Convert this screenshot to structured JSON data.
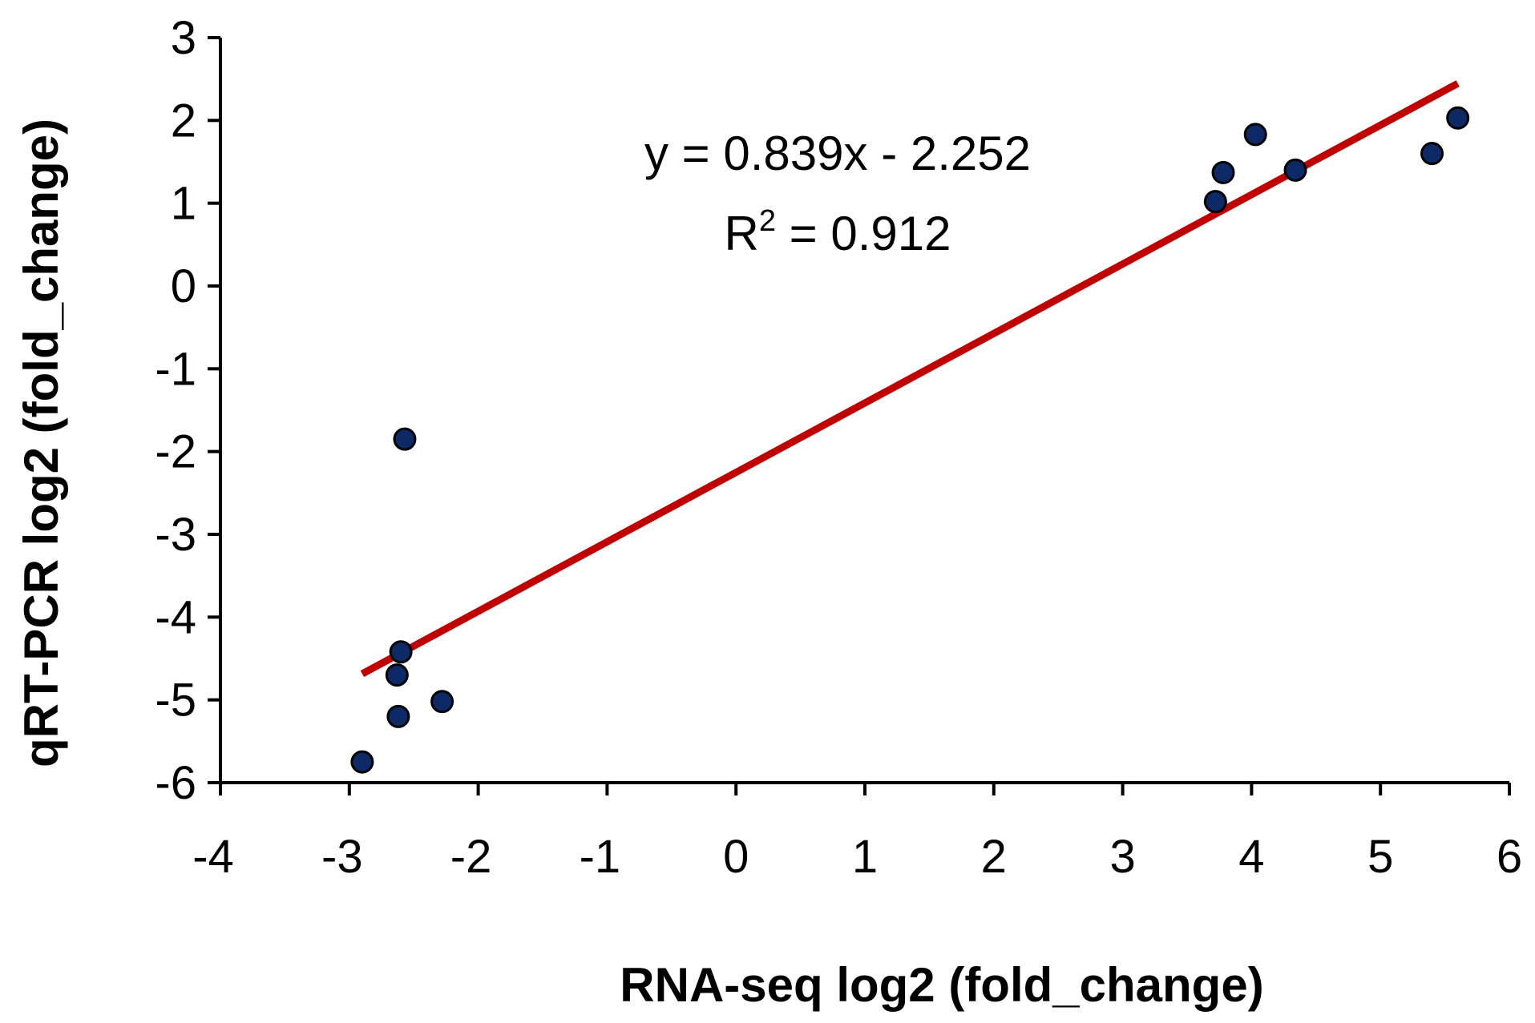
{
  "chart_data": {
    "type": "scatter",
    "xlabel": "RNA-seq log2 (fold_change)",
    "ylabel": "qRT-PCR log2 (fold_change)",
    "xlim": [
      -4,
      6
    ],
    "ylim": [
      -6,
      3
    ],
    "xticks": [
      "-4",
      "-3",
      "-2",
      "-1",
      "0",
      "1",
      "2",
      "3",
      "4",
      "5",
      "6"
    ],
    "yticks": [
      "3",
      "2",
      "1",
      "0",
      "-1",
      "-2",
      "-3",
      "-4",
      "-5",
      "-6"
    ],
    "grid": false,
    "legend": "none",
    "series": [
      {
        "x": [
          -2.57,
          -2.6,
          -2.63,
          -2.62,
          -2.28,
          -2.9,
          3.72,
          3.78,
          4.03,
          4.34,
          5.4,
          5.6
        ],
        "y": [
          -1.85,
          -4.42,
          -4.7,
          -5.2,
          -5.02,
          -5.75,
          1.02,
          1.37,
          1.83,
          1.4,
          1.6,
          2.03
        ],
        "color": "#0d2a66"
      }
    ],
    "trendline": {
      "slope": 0.839,
      "intercept": -2.252,
      "x_range": [
        -2.9,
        5.6
      ],
      "color": "#c00000"
    },
    "annotations": {
      "equation": "y = 0.839x - 2.252",
      "r2_base": "R",
      "r2_sup": "2",
      "r2_rest": " = 0.912"
    }
  }
}
